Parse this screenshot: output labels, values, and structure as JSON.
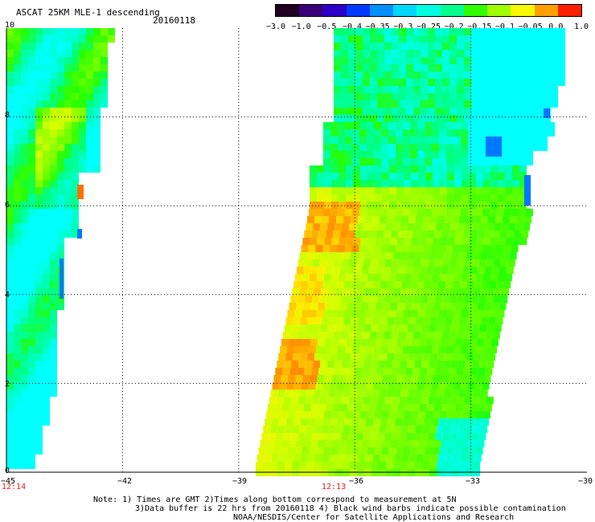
{
  "header": {
    "title": "ASCAT 25KM MLE-1 descending",
    "date": "20160118"
  },
  "colorbar": {
    "ticks": [
      "−3.0",
      "−1.0",
      "−0.5",
      "−0.4",
      "−0.35",
      "−0.3",
      "−0.25",
      "−0.2",
      "−0.15",
      "−0.1",
      "−0.05",
      "0.0",
      "1.0"
    ],
    "colors": [
      "#200020",
      "#3a0078",
      "#2a00c8",
      "#0038ff",
      "#0090ff",
      "#00d8ff",
      "#00ffe0",
      "#00ff90",
      "#30ff00",
      "#a0ff00",
      "#f8f800",
      "#ffa000",
      "#ff2000"
    ]
  },
  "map": {
    "x_tick_labels": [
      "−45",
      "−42",
      "−39",
      "−36",
      "−33",
      "−30"
    ],
    "y_tick_labels": [
      "10",
      "8",
      "6",
      "4",
      "2",
      "0"
    ],
    "x_range": [
      -45,
      -30
    ],
    "y_range": [
      0,
      10
    ],
    "x_gridlines": [
      -42,
      -39,
      -36,
      -33
    ],
    "y_gridlines": [
      2,
      4,
      6,
      8
    ],
    "time_labels": [
      "12:14",
      "12:13"
    ]
  },
  "footer": {
    "line1": "Note: 1) Times are GMT 2)Times along bottom correspond to measurement at 5N",
    "line2": "3)Data buffer is 22 hrs from 20160118 4) Black wind barbs indicate possible contamination",
    "line3": "NOAA/NESDIS/Center for Satellite Applications and Research"
  }
}
